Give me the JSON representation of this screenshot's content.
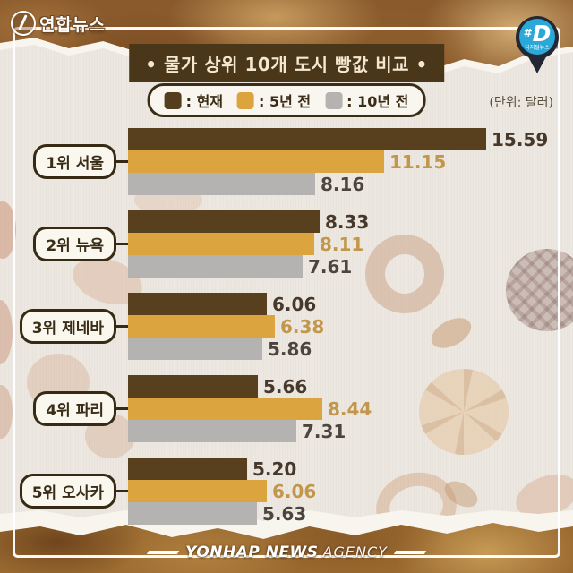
{
  "header": {
    "logo_text": "연합뉴스",
    "title": "• 물가 상위 10개 도시 빵값 비교 •",
    "unit_label": "(단위: 달러)",
    "badge": {
      "hash": "#",
      "letter": "D",
      "sub": "디지털뉴스"
    }
  },
  "legend": {
    "items": [
      {
        "label": ": 현재",
        "color": "#543e1d"
      },
      {
        "label": ": 5년 전",
        "color": "#dda43e"
      },
      {
        "label": ": 10년 전",
        "color": "#b5b3b1"
      }
    ]
  },
  "chart_data": {
    "type": "bar",
    "orientation": "horizontal",
    "title": "물가 상위 10개 도시 빵값 비교",
    "unit": "달러(USD)",
    "categories": [
      "1위 서울",
      "2위 뉴욕",
      "3위 제네바",
      "4위 파리",
      "5위 오사카"
    ],
    "series": [
      {
        "name": "현재",
        "color": "#583f1d",
        "text_color": "#46382a",
        "values": [
          "15.59",
          "8.33",
          "6.06",
          "5.66",
          "5.20"
        ]
      },
      {
        "name": "5년 전",
        "color": "#dca43f",
        "text_color": "#c2974b",
        "values": [
          "11.15",
          "8.11",
          "6.38",
          "8.44",
          "6.06"
        ]
      },
      {
        "name": "10년 전",
        "color": "#b5b3b1",
        "text_color": "#4c453d",
        "values": [
          "8.16",
          "7.61",
          "5.86",
          "7.31",
          "5.63"
        ]
      }
    ],
    "max_value": 15.59,
    "xlim": [
      0,
      15.59
    ],
    "legend_position": "top",
    "grid": false
  },
  "footer": {
    "brand_strong": "YONHAP NEWS",
    "brand_light": "AGENCY"
  }
}
